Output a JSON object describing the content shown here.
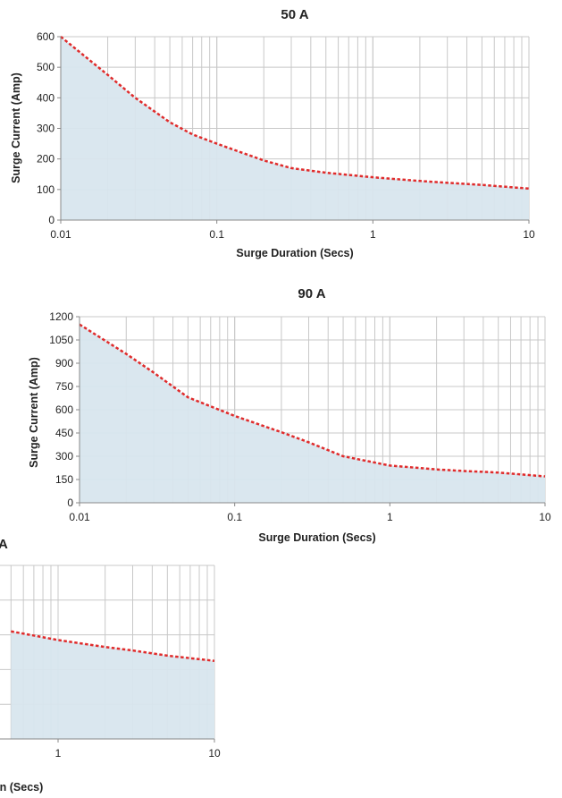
{
  "chart_data": [
    {
      "type": "area",
      "title": "50 A",
      "xlabel": "Surge Duration (Secs)",
      "ylabel": "Surge Current (Amp)",
      "x_scale": "log",
      "xlim": [
        0.01,
        10
      ],
      "ylim": [
        0,
        600
      ],
      "x_ticks": [
        "0.01",
        "0.1",
        "1",
        "10"
      ],
      "y_ticks": [
        "0",
        "100",
        "200",
        "300",
        "400",
        "500",
        "600"
      ],
      "grid": true,
      "series": [
        {
          "x": [
            0.01,
            0.02,
            0.03,
            0.05,
            0.07,
            0.1,
            0.2,
            0.3,
            0.5,
            1,
            2,
            3,
            5,
            10
          ],
          "values": [
            600,
            475,
            400,
            320,
            280,
            250,
            195,
            170,
            155,
            140,
            128,
            122,
            115,
            103
          ]
        }
      ],
      "colors": {
        "line": "#e02b2b",
        "fill": "#d8e6ee"
      }
    },
    {
      "type": "area",
      "title": "90 A",
      "xlabel": "Surge Duration (Secs)",
      "ylabel": "Surge Current (Amp)",
      "x_scale": "log",
      "xlim": [
        0.01,
        10
      ],
      "ylim": [
        0,
        1200
      ],
      "x_ticks": [
        "0.01",
        "0.1",
        "1",
        "10"
      ],
      "y_ticks": [
        "0",
        "150",
        "300",
        "450",
        "600",
        "750",
        "900",
        "1050",
        "1200"
      ],
      "grid": true,
      "series": [
        {
          "x": [
            0.01,
            0.02,
            0.03,
            0.05,
            0.1,
            0.2,
            0.3,
            0.5,
            1,
            2,
            3,
            5,
            10
          ],
          "values": [
            1150,
            960,
            840,
            680,
            560,
            455,
            390,
            300,
            240,
            215,
            205,
            195,
            170
          ]
        }
      ],
      "colors": {
        "line": "#e02b2b",
        "fill": "#d8e6ee"
      }
    },
    {
      "type": "area",
      "title": "",
      "xlabel": "on (Secs)",
      "ylabel": "",
      "x_scale": "log",
      "x_ticks": [
        "1",
        "10"
      ],
      "partial_title": "A",
      "grid": true,
      "series": [
        {
          "x": [
            0.5,
            1,
            2,
            3,
            5,
            10
          ],
          "values": [
            0.62,
            0.57,
            0.53,
            0.51,
            0.48,
            0.45
          ]
        }
      ],
      "colors": {
        "line": "#e02b2b",
        "fill": "#d8e6ee"
      }
    }
  ]
}
